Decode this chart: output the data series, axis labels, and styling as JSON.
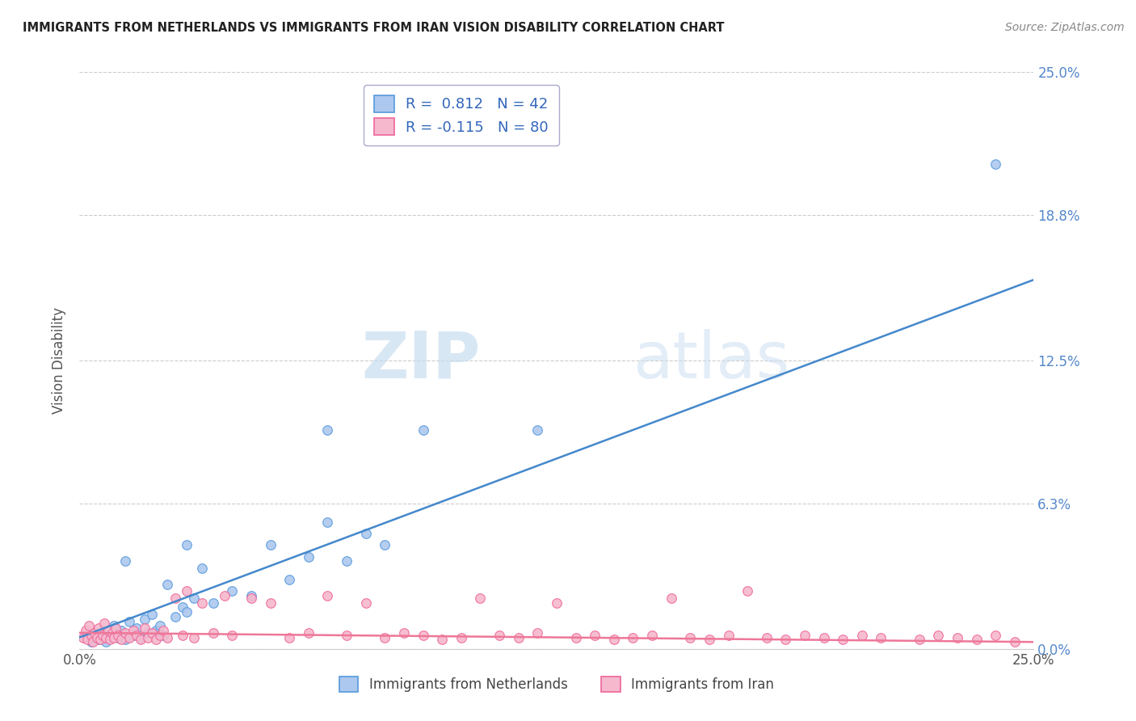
{
  "title": "IMMIGRANTS FROM NETHERLANDS VS IMMIGRANTS FROM IRAN VISION DISABILITY CORRELATION CHART",
  "source": "Source: ZipAtlas.com",
  "ylabel": "Vision Disability",
  "ytick_values": [
    0.0,
    6.3,
    12.5,
    18.8,
    25.0
  ],
  "xlim": [
    0.0,
    25.0
  ],
  "ylim": [
    0.0,
    25.0
  ],
  "netherlands_color": "#adc8ee",
  "netherlands_edge_color": "#5599dd",
  "iran_color": "#f5b8cc",
  "iran_edge_color": "#ee6699",
  "netherlands_line_color": "#4488cc",
  "iran_line_color": "#ee7799",
  "netherlands_scatter": [
    [
      0.3,
      0.3
    ],
    [
      0.4,
      0.5
    ],
    [
      0.5,
      0.4
    ],
    [
      0.6,
      0.7
    ],
    [
      0.7,
      0.3
    ],
    [
      0.8,
      0.6
    ],
    [
      0.9,
      1.0
    ],
    [
      1.0,
      0.5
    ],
    [
      1.1,
      0.8
    ],
    [
      1.2,
      0.4
    ],
    [
      1.3,
      1.2
    ],
    [
      1.4,
      0.6
    ],
    [
      1.5,
      0.9
    ],
    [
      1.6,
      0.5
    ],
    [
      1.7,
      1.3
    ],
    [
      1.8,
      0.7
    ],
    [
      1.9,
      1.5
    ],
    [
      2.0,
      0.8
    ],
    [
      2.1,
      1.0
    ],
    [
      2.2,
      0.6
    ],
    [
      2.3,
      2.8
    ],
    [
      2.5,
      1.4
    ],
    [
      2.7,
      1.8
    ],
    [
      2.8,
      1.6
    ],
    [
      3.0,
      2.2
    ],
    [
      3.2,
      3.5
    ],
    [
      3.5,
      2.0
    ],
    [
      4.0,
      2.5
    ],
    [
      4.5,
      2.3
    ],
    [
      5.0,
      4.5
    ],
    [
      5.5,
      3.0
    ],
    [
      6.0,
      4.0
    ],
    [
      6.5,
      5.5
    ],
    [
      7.0,
      3.8
    ],
    [
      7.5,
      5.0
    ],
    [
      8.0,
      4.5
    ],
    [
      9.0,
      9.5
    ],
    [
      12.0,
      9.5
    ],
    [
      24.0,
      21.0
    ],
    [
      1.2,
      3.8
    ],
    [
      2.8,
      4.5
    ],
    [
      6.5,
      9.5
    ]
  ],
  "iran_scatter": [
    [
      0.1,
      0.5
    ],
    [
      0.15,
      0.8
    ],
    [
      0.2,
      0.4
    ],
    [
      0.25,
      1.0
    ],
    [
      0.3,
      0.6
    ],
    [
      0.35,
      0.3
    ],
    [
      0.4,
      0.7
    ],
    [
      0.45,
      0.5
    ],
    [
      0.5,
      0.9
    ],
    [
      0.55,
      0.4
    ],
    [
      0.6,
      0.6
    ],
    [
      0.65,
      1.1
    ],
    [
      0.7,
      0.5
    ],
    [
      0.75,
      0.8
    ],
    [
      0.8,
      0.4
    ],
    [
      0.85,
      0.7
    ],
    [
      0.9,
      0.5
    ],
    [
      0.95,
      0.9
    ],
    [
      1.0,
      0.6
    ],
    [
      1.1,
      0.4
    ],
    [
      1.2,
      0.7
    ],
    [
      1.3,
      0.5
    ],
    [
      1.4,
      0.8
    ],
    [
      1.5,
      0.6
    ],
    [
      1.6,
      0.4
    ],
    [
      1.7,
      0.9
    ],
    [
      1.8,
      0.5
    ],
    [
      1.9,
      0.7
    ],
    [
      2.0,
      0.4
    ],
    [
      2.1,
      0.6
    ],
    [
      2.2,
      0.8
    ],
    [
      2.3,
      0.5
    ],
    [
      2.5,
      2.2
    ],
    [
      2.7,
      0.6
    ],
    [
      2.8,
      2.5
    ],
    [
      3.0,
      0.5
    ],
    [
      3.2,
      2.0
    ],
    [
      3.5,
      0.7
    ],
    [
      3.8,
      2.3
    ],
    [
      4.0,
      0.6
    ],
    [
      4.5,
      2.2
    ],
    [
      5.0,
      2.0
    ],
    [
      5.5,
      0.5
    ],
    [
      6.0,
      0.7
    ],
    [
      6.5,
      2.3
    ],
    [
      7.0,
      0.6
    ],
    [
      7.5,
      2.0
    ],
    [
      8.0,
      0.5
    ],
    [
      8.5,
      0.7
    ],
    [
      9.0,
      0.6
    ],
    [
      9.5,
      0.4
    ],
    [
      10.0,
      0.5
    ],
    [
      10.5,
      2.2
    ],
    [
      11.0,
      0.6
    ],
    [
      11.5,
      0.5
    ],
    [
      12.0,
      0.7
    ],
    [
      12.5,
      2.0
    ],
    [
      13.0,
      0.5
    ],
    [
      13.5,
      0.6
    ],
    [
      14.0,
      0.4
    ],
    [
      14.5,
      0.5
    ],
    [
      15.0,
      0.6
    ],
    [
      15.5,
      2.2
    ],
    [
      16.0,
      0.5
    ],
    [
      16.5,
      0.4
    ],
    [
      17.0,
      0.6
    ],
    [
      17.5,
      2.5
    ],
    [
      18.0,
      0.5
    ],
    [
      18.5,
      0.4
    ],
    [
      19.0,
      0.6
    ],
    [
      19.5,
      0.5
    ],
    [
      20.0,
      0.4
    ],
    [
      20.5,
      0.6
    ],
    [
      21.0,
      0.5
    ],
    [
      22.0,
      0.4
    ],
    [
      22.5,
      0.6
    ],
    [
      23.0,
      0.5
    ],
    [
      23.5,
      0.4
    ],
    [
      24.0,
      0.6
    ],
    [
      24.5,
      0.3
    ]
  ],
  "watermark_zip": "ZIP",
  "watermark_atlas": "atlas",
  "background_color": "#ffffff",
  "grid_color": "#cccccc",
  "ytick_color": "#5588cc"
}
